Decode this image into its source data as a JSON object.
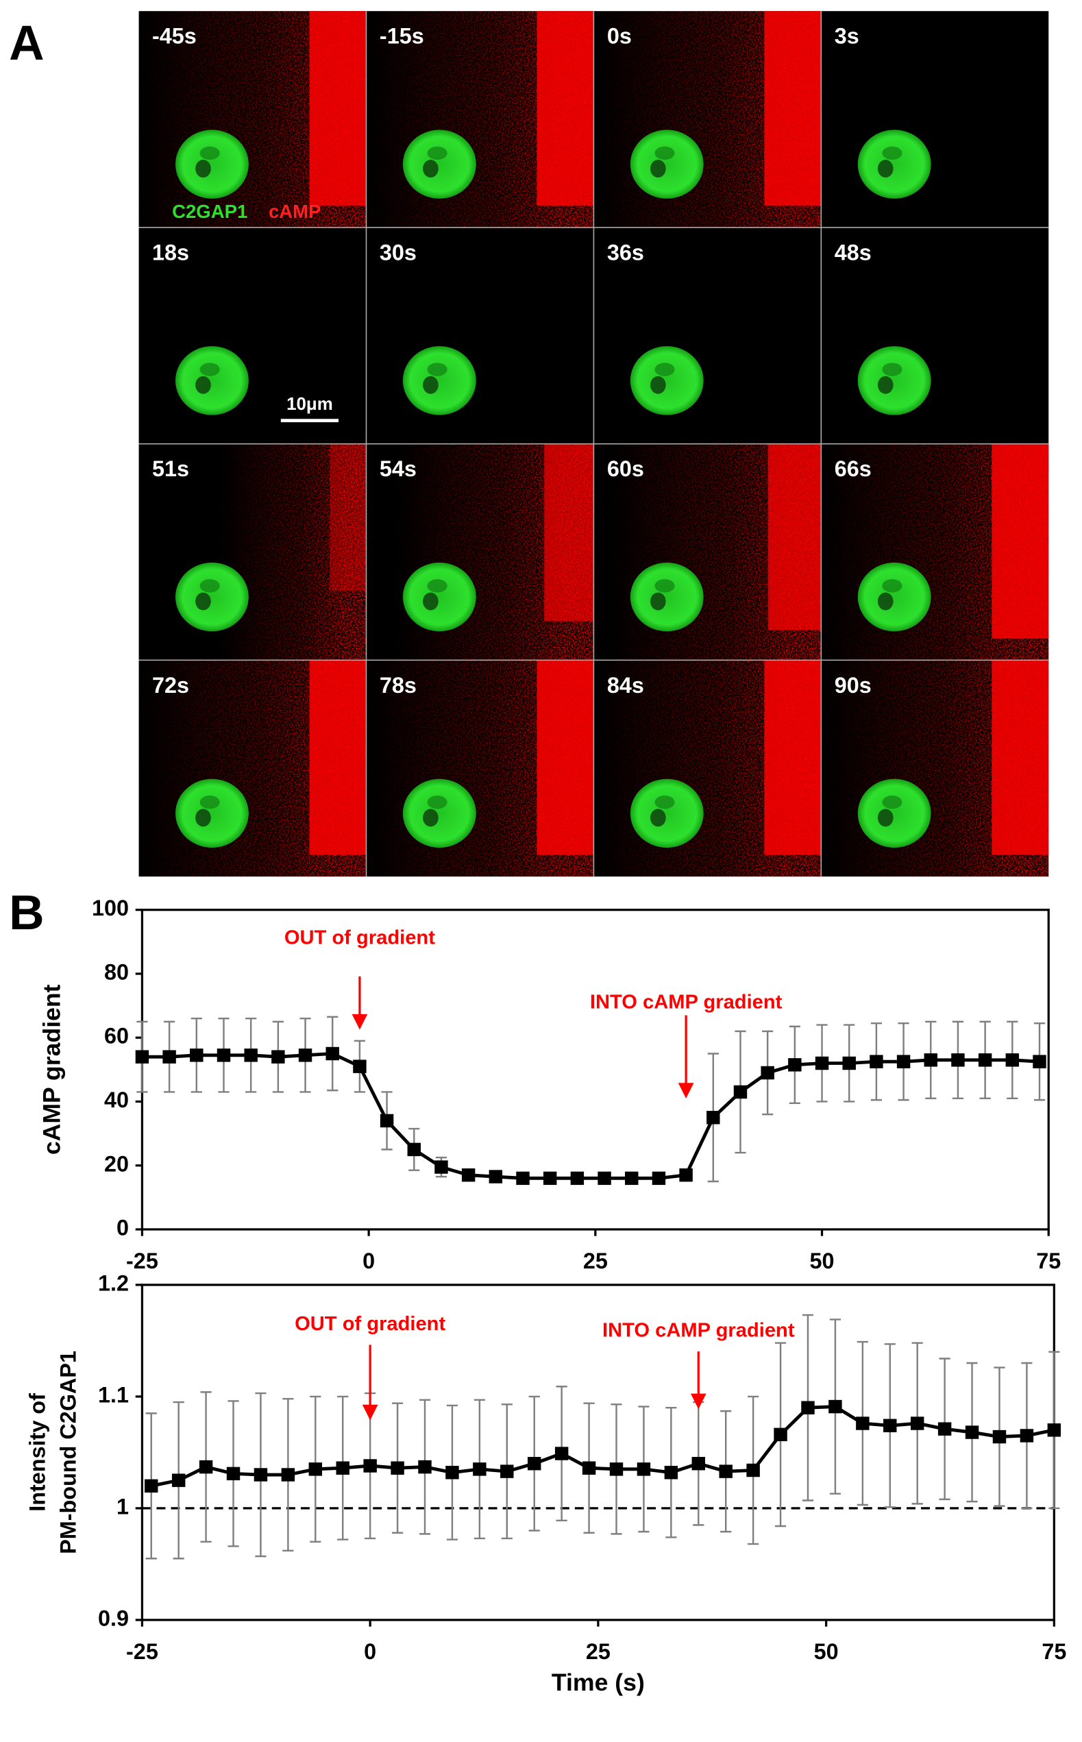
{
  "panel_a": {
    "label": "A",
    "frames": [
      "-45s",
      "-15s",
      "0s",
      "3s",
      "18s",
      "30s",
      "36s",
      "48s",
      "51s",
      "54s",
      "60s",
      "66s",
      "72s",
      "78s",
      "84s",
      "90s"
    ],
    "legend": [
      "C2GAP1",
      "cAMP"
    ],
    "scale_bar": "10μm"
  },
  "panel_b": {
    "label": "B"
  },
  "chart_data": [
    {
      "type": "line",
      "ylabel": "cAMP gradient",
      "xlim": [
        -25,
        75
      ],
      "xticks": [
        -25,
        0,
        25,
        50,
        75
      ],
      "ylim": [
        0,
        100
      ],
      "yticks": [
        0,
        20,
        40,
        60,
        80,
        100
      ],
      "x": [
        -25,
        -22,
        -19,
        -16,
        -13,
        -10,
        -7,
        -4,
        -1,
        2,
        5,
        8,
        11,
        14,
        17,
        20,
        23,
        26,
        29,
        32,
        35,
        38,
        41,
        44,
        47,
        50,
        53,
        56,
        59,
        62,
        65,
        68,
        71,
        74
      ],
      "series": [
        {
          "color": "#000000",
          "error_color": "#7f7f7f",
          "values": [
            54,
            54,
            54.5,
            54.5,
            54.5,
            54,
            54.5,
            55,
            51,
            34,
            25,
            19.5,
            17,
            16.5,
            16,
            16,
            16,
            16,
            16,
            16,
            17,
            35,
            43,
            49,
            51.5,
            52,
            52,
            52.5,
            52.5,
            53,
            53,
            53,
            53,
            52.5
          ],
          "errors": [
            11,
            11,
            11.5,
            11.5,
            11.5,
            11,
            11.5,
            11.5,
            8,
            9,
            6.5,
            3,
            1.5,
            1,
            1,
            1,
            1,
            1,
            1,
            1,
            1.5,
            20,
            19,
            13,
            12,
            12,
            12,
            12,
            12,
            12,
            12,
            12,
            12,
            12
          ]
        }
      ],
      "annotations": [
        {
          "text": "OUT of gradient",
          "x": -1
        },
        {
          "text": "INTO cAMP gradient",
          "x": 35
        }
      ]
    },
    {
      "type": "line",
      "ylabel": [
        "Intensity of",
        "PM-bound C2GAP1"
      ],
      "xlabel": "Time (s)",
      "xlim": [
        -25,
        75
      ],
      "xticks": [
        -25,
        0,
        25,
        50,
        75
      ],
      "ylim": [
        0.9,
        1.2
      ],
      "yticks": [
        0.9,
        1,
        1.1,
        1.2
      ],
      "hline": 1,
      "x": [
        -24,
        -21,
        -18,
        -15,
        -12,
        -9,
        -6,
        -3,
        0,
        3,
        6,
        9,
        12,
        15,
        18,
        21,
        24,
        27,
        30,
        33,
        36,
        39,
        42,
        45,
        48,
        51,
        54,
        57,
        60,
        63,
        66,
        69,
        72,
        75
      ],
      "series": [
        {
          "color": "#000000",
          "error_color": "#7f7f7f",
          "values": [
            1.02,
            1.025,
            1.037,
            1.031,
            1.03,
            1.03,
            1.035,
            1.036,
            1.038,
            1.036,
            1.037,
            1.032,
            1.035,
            1.033,
            1.04,
            1.049,
            1.036,
            1.035,
            1.035,
            1.032,
            1.04,
            1.033,
            1.034,
            1.066,
            1.09,
            1.091,
            1.076,
            1.074,
            1.076,
            1.071,
            1.068,
            1.064,
            1.065,
            1.07
          ],
          "errors": [
            0.065,
            0.07,
            0.067,
            0.065,
            0.073,
            0.068,
            0.065,
            0.064,
            0.065,
            0.058,
            0.06,
            0.06,
            0.062,
            0.06,
            0.06,
            0.06,
            0.058,
            0.058,
            0.056,
            0.058,
            0.055,
            0.054,
            0.066,
            0.082,
            0.083,
            0.078,
            0.073,
            0.073,
            0.072,
            0.063,
            0.062,
            0.062,
            0.065,
            0.07
          ]
        }
      ],
      "annotations": [
        {
          "text": "OUT of gradient",
          "x": 0
        },
        {
          "text": "INTO cAMP gradient",
          "x": 36
        }
      ]
    }
  ]
}
